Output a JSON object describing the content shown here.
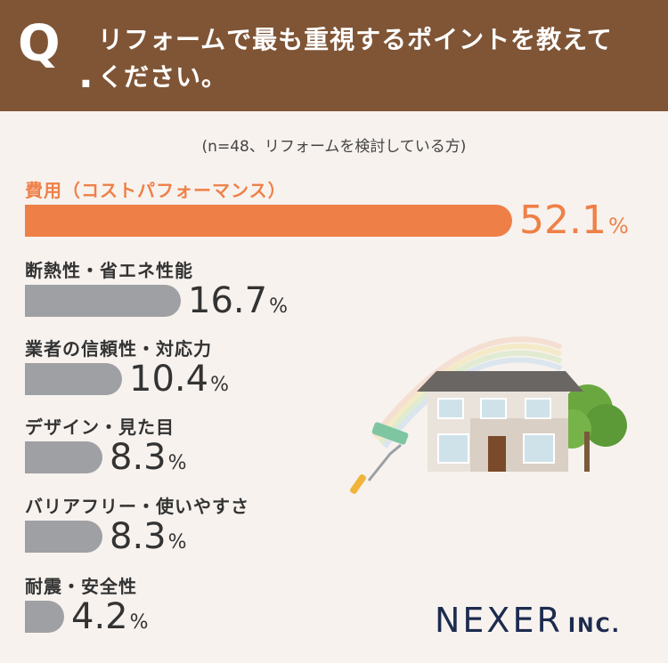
{
  "header": {
    "q_mark": "Q",
    "q_dot": ".",
    "question_line1": "リフォームで最も重視するポイントを教えて",
    "question_line2": "ください。"
  },
  "subtitle": "(n=48、リフォームを検討している方)",
  "percent_sign": "%",
  "logo": {
    "name": "NEXER",
    "suffix": "INC."
  },
  "colors": {
    "header": "#7f5536",
    "highlight": "#ee8047",
    "bar": "#9fa0a3",
    "background": "#f7f2ee",
    "logo": "#1d2b4f"
  },
  "chart_data": {
    "type": "bar",
    "orientation": "horizontal",
    "categories": [
      "費用（コストパフォーマンス）",
      "断熱性・省エネ性能",
      "業者の信頼性・対応力",
      "デザイン・見た目",
      "バリアフリー・使いやすさ",
      "耐震・安全性"
    ],
    "values": [
      52.1,
      16.7,
      10.4,
      8.3,
      8.3,
      4.2
    ],
    "value_labels": [
      "52.1",
      "16.7",
      "10.4",
      "8.3",
      "8.3",
      "4.2"
    ],
    "unit": "%",
    "xlim": [
      0,
      52.1
    ],
    "highlight_index": 0,
    "grid": false,
    "legend": "none"
  }
}
